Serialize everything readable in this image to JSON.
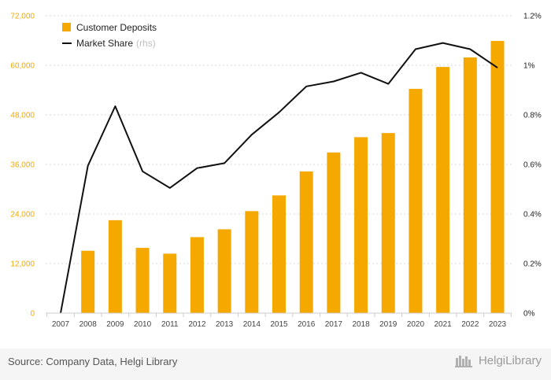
{
  "chart_data": {
    "type": "bar+line",
    "categories": [
      "2007",
      "2008",
      "2009",
      "2010",
      "2011",
      "2012",
      "2013",
      "2014",
      "2015",
      "2016",
      "2017",
      "2018",
      "2019",
      "2020",
      "2021",
      "2022",
      "2023"
    ],
    "series": [
      {
        "name": "Customer Deposits",
        "type": "bar",
        "axis": "left",
        "color": "#f5a800",
        "values": [
          0,
          15100,
          22500,
          15800,
          14400,
          18400,
          20300,
          24700,
          28500,
          34300,
          38900,
          42600,
          43600,
          54300,
          59600,
          61900,
          65900
        ]
      },
      {
        "name": "Market Share",
        "note": "(rhs)",
        "type": "line",
        "axis": "right",
        "color": "#111111",
        "values": [
          0.0,
          0.595,
          0.835,
          0.572,
          0.505,
          0.585,
          0.605,
          0.72,
          0.81,
          0.915,
          0.935,
          0.97,
          0.925,
          1.065,
          1.09,
          1.065,
          0.99
        ]
      }
    ],
    "y_left": {
      "ylim": [
        0,
        72000
      ],
      "ticks": [
        "0",
        "12,000",
        "24,000",
        "36,000",
        "48,000",
        "60,000",
        "72,000"
      ],
      "tick_values": [
        0,
        12000,
        24000,
        36000,
        48000,
        60000,
        72000
      ],
      "color": "#f2a900"
    },
    "y_right": {
      "ylim": [
        0,
        1.2
      ],
      "ticks": [
        "0%",
        "0.2%",
        "0.4%",
        "0.6%",
        "0.8%",
        "1%",
        "1.2%"
      ],
      "tick_values": [
        0,
        0.2,
        0.4,
        0.6,
        0.8,
        1.0,
        1.2
      ]
    },
    "grid": "horizontal dashed",
    "legend_position": "top-left"
  },
  "footer": {
    "source": "Source: Company Data, Helgi Library",
    "logo_text": "HelgiLibrary"
  }
}
